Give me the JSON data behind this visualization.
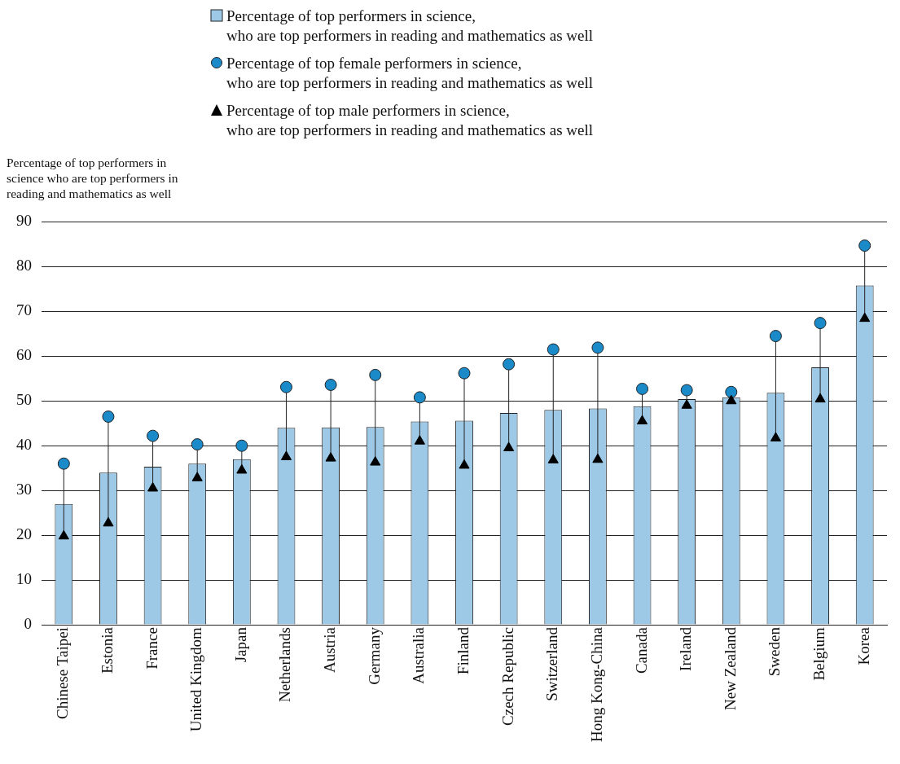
{
  "chart_data": {
    "type": "bar",
    "ylabel": "Percentage of top performers in science who are top performers in reading and mathematics as well",
    "categories": [
      "Chinese Taipei",
      "Estonia",
      "France",
      "United Kingdom",
      "Japan",
      "Netherlands",
      "Austria",
      "Germany",
      "Australia",
      "Finland",
      "Czech Republic",
      "Switzerland",
      "Hong Kong-China",
      "Canada",
      "Ireland",
      "New Zealand",
      "Sweden",
      "Belgium",
      "Korea"
    ],
    "series": [
      {
        "name": "Percentage of top performers in science, who are top performers in reading and mathematics as well",
        "color": "#9dc9e6",
        "values": [
          27,
          34,
          35.3,
          36,
          37,
          44,
          44.1,
          44.2,
          45.4,
          45.6,
          47.3,
          48,
          48.3,
          48.8,
          50.4,
          50.8,
          51.8,
          57.5,
          75.8
        ]
      },
      {
        "name": "Percentage of top female performers in science, who are top performers in reading and mathematics as well",
        "type": "scatter",
        "marker": "circle",
        "color": "#1a8ac9",
        "values": [
          36,
          46.5,
          42.2,
          40.3,
          40,
          53.1,
          53.6,
          55.8,
          50.8,
          56.2,
          58.2,
          61.5,
          61.9,
          52.7,
          52.4,
          52,
          64.5,
          67.4,
          84.7
        ]
      },
      {
        "name": "Percentage of top male performers in science, who are top performers in reading and mathematics as well",
        "type": "scatter",
        "marker": "triangle",
        "color": "#000000",
        "values": [
          19.8,
          22.7,
          30.5,
          32.8,
          34.5,
          37.5,
          37.2,
          36.3,
          41,
          35.6,
          39.5,
          36.8,
          36.9,
          45.5,
          49,
          50,
          41.7,
          50.4,
          68.4
        ]
      }
    ],
    "ylim": [
      0,
      90
    ],
    "yticks": [
      0,
      10,
      20,
      30,
      40,
      50,
      60,
      70,
      80,
      90
    ],
    "grid": "y",
    "legend": "top"
  }
}
